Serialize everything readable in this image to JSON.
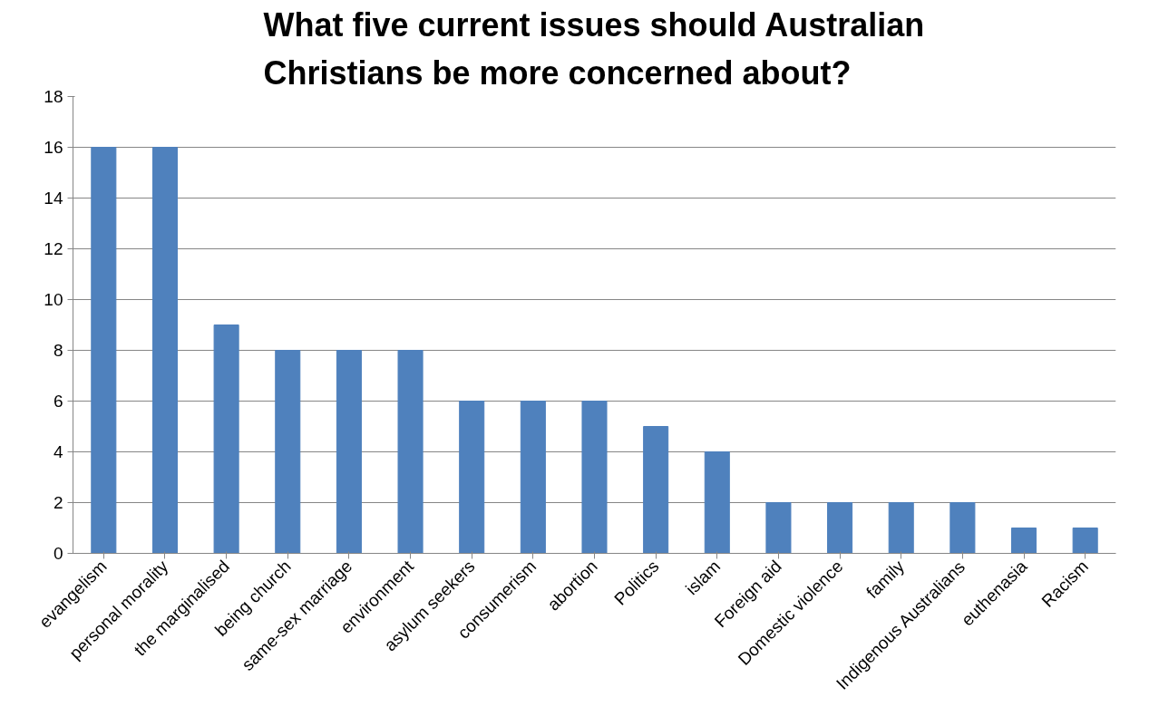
{
  "chart_data": {
    "type": "bar",
    "title": "What five current issues should Australian\nChristians be more concerned about?",
    "categories": [
      "evangelism",
      "personal morality",
      "the marginalised",
      "being church",
      "same-sex marriage",
      "environment",
      "asylum seekers",
      "consumerism",
      "abortion",
      "Politics",
      "islam",
      "Foreign aid",
      "Domestic violence",
      "family",
      "Indigenous Australians",
      "euthenasia",
      "Racism"
    ],
    "values": [
      16,
      16,
      9,
      8,
      8,
      8,
      6,
      6,
      6,
      5,
      4,
      2,
      2,
      2,
      2,
      1,
      1
    ],
    "color": "#4f81bd",
    "ylim": [
      0,
      18
    ],
    "yticks": [
      0,
      2,
      4,
      6,
      8,
      10,
      12,
      14,
      16,
      18
    ],
    "grid": "y"
  }
}
